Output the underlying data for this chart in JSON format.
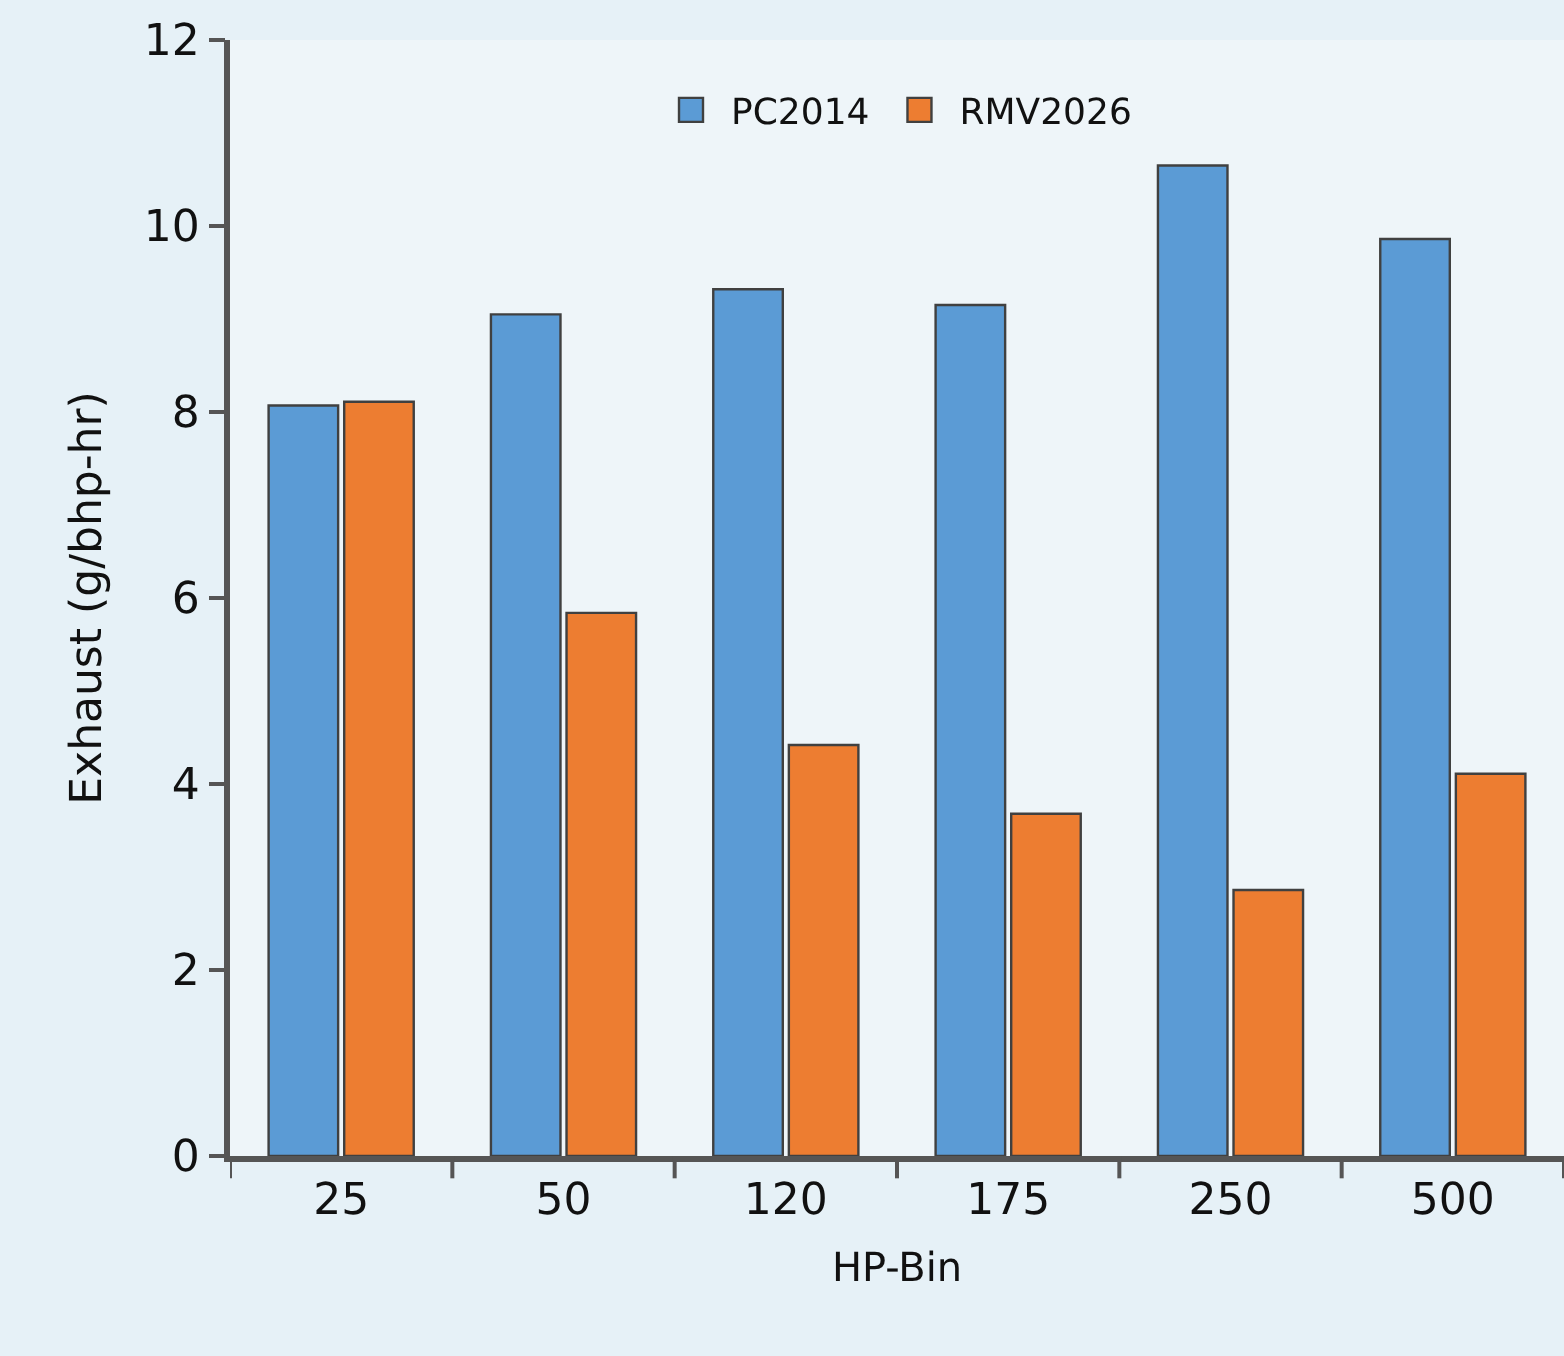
{
  "chart_data": {
    "type": "bar",
    "xlabel": "HP-Bin",
    "ylabel": "Exhaust (g/bhp-hr)",
    "categories": [
      "25",
      "50",
      "120",
      "175",
      "250",
      "500"
    ],
    "series": [
      {
        "name": "PC2014",
        "color": "#5b9bd5",
        "values": [
          8.07,
          9.05,
          9.32,
          9.15,
          10.65,
          9.86
        ]
      },
      {
        "name": "RMV2026",
        "color": "#ed7d31",
        "values": [
          8.11,
          5.84,
          4.42,
          3.68,
          2.86,
          4.11
        ]
      }
    ],
    "ylim": [
      0,
      12
    ],
    "yticks": [
      0,
      2,
      4,
      6,
      8,
      10,
      12
    ],
    "grid": false,
    "legend": "top"
  }
}
